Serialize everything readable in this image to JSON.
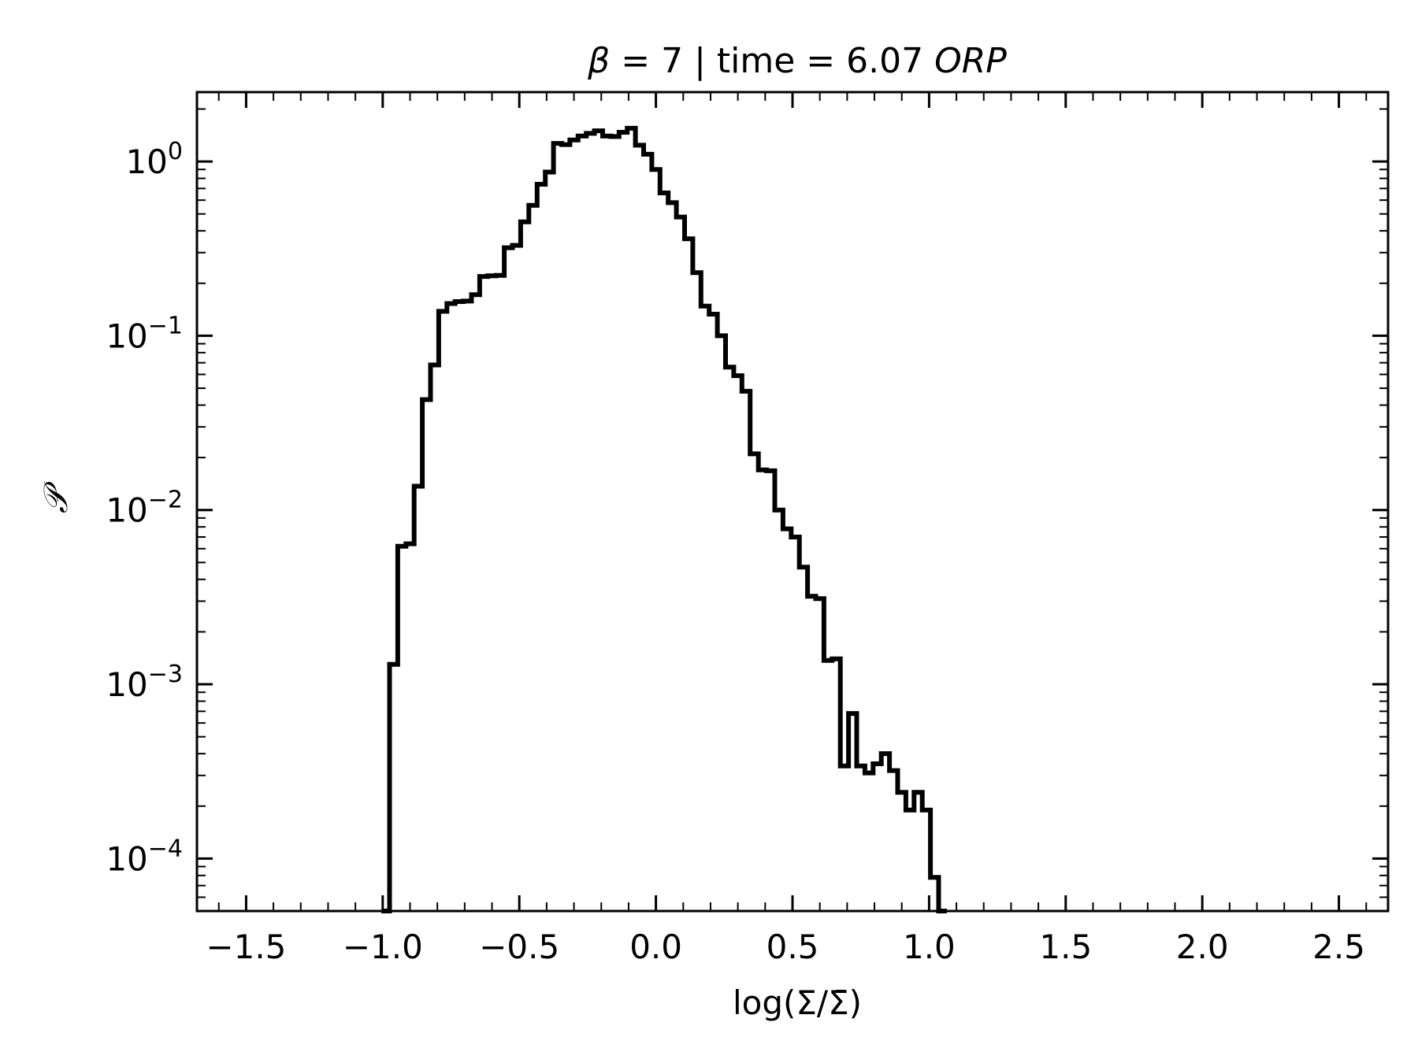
{
  "chart_data": {
    "type": "step",
    "title": {
      "beta_symbol": "β",
      "beta_rest": " = 7 | time = 6.07 ",
      "unit": "ORP"
    },
    "xlabel": "log(Σ/Σ̄)",
    "ylabel": "𝒫",
    "yscale": "log",
    "xlim": [
      -1.68,
      2.68
    ],
    "ylim": [
      5e-05,
      2.5
    ],
    "grid": false,
    "legend": "none",
    "line_color": "#000000",
    "x_ticks": [
      {
        "value": -1.5,
        "label": "−1.5"
      },
      {
        "value": -1.0,
        "label": "−1.0"
      },
      {
        "value": -0.5,
        "label": "−0.5"
      },
      {
        "value": 0.0,
        "label": "0.0"
      },
      {
        "value": 0.5,
        "label": "0.5"
      },
      {
        "value": 1.0,
        "label": "1.0"
      },
      {
        "value": 1.5,
        "label": "1.5"
      },
      {
        "value": 2.0,
        "label": "2.0"
      },
      {
        "value": 2.5,
        "label": "2.5"
      }
    ],
    "y_ticks": [
      {
        "value": 1,
        "base": "10",
        "exp": "0"
      },
      {
        "value": 0.1,
        "base": "10",
        "exp": "−1"
      },
      {
        "value": 0.01,
        "base": "10",
        "exp": "−2"
      },
      {
        "value": 0.001,
        "base": "10",
        "exp": "−3"
      },
      {
        "value": 0.0001,
        "base": "10",
        "exp": "−4"
      }
    ],
    "bins": [
      [
        -1.005,
        -0.975,
        1e-07
      ],
      [
        -0.975,
        -0.945,
        0.0013
      ],
      [
        -0.945,
        -0.915,
        0.0062
      ],
      [
        -0.915,
        -0.885,
        0.0064
      ],
      [
        -0.885,
        -0.855,
        0.0137
      ],
      [
        -0.855,
        -0.825,
        0.043
      ],
      [
        -0.825,
        -0.795,
        0.068
      ],
      [
        -0.795,
        -0.765,
        0.138
      ],
      [
        -0.765,
        -0.735,
        0.153
      ],
      [
        -0.735,
        -0.705,
        0.157
      ],
      [
        -0.705,
        -0.675,
        0.158
      ],
      [
        -0.675,
        -0.645,
        0.172
      ],
      [
        -0.645,
        -0.615,
        0.219
      ],
      [
        -0.615,
        -0.585,
        0.221
      ],
      [
        -0.585,
        -0.555,
        0.222
      ],
      [
        -0.555,
        -0.525,
        0.32
      ],
      [
        -0.525,
        -0.495,
        0.33
      ],
      [
        -0.495,
        -0.465,
        0.45
      ],
      [
        -0.465,
        -0.435,
        0.56
      ],
      [
        -0.435,
        -0.405,
        0.74
      ],
      [
        -0.405,
        -0.375,
        0.87
      ],
      [
        -0.375,
        -0.345,
        1.27
      ],
      [
        -0.345,
        -0.315,
        1.25
      ],
      [
        -0.315,
        -0.285,
        1.33
      ],
      [
        -0.285,
        -0.255,
        1.4
      ],
      [
        -0.255,
        -0.225,
        1.45
      ],
      [
        -0.225,
        -0.195,
        1.5
      ],
      [
        -0.195,
        -0.165,
        1.4
      ],
      [
        -0.165,
        -0.135,
        1.39
      ],
      [
        -0.135,
        -0.105,
        1.47
      ],
      [
        -0.105,
        -0.075,
        1.55
      ],
      [
        -0.075,
        -0.045,
        1.24
      ],
      [
        -0.045,
        -0.015,
        1.1
      ],
      [
        -0.015,
        0.015,
        0.9
      ],
      [
        0.015,
        0.045,
        0.66
      ],
      [
        0.045,
        0.075,
        0.58
      ],
      [
        0.075,
        0.105,
        0.48
      ],
      [
        0.105,
        0.135,
        0.36
      ],
      [
        0.135,
        0.165,
        0.23
      ],
      [
        0.165,
        0.195,
        0.148
      ],
      [
        0.195,
        0.225,
        0.133
      ],
      [
        0.225,
        0.255,
        0.1
      ],
      [
        0.255,
        0.285,
        0.066
      ],
      [
        0.285,
        0.315,
        0.059
      ],
      [
        0.315,
        0.345,
        0.048
      ],
      [
        0.345,
        0.375,
        0.021
      ],
      [
        0.375,
        0.405,
        0.017
      ],
      [
        0.405,
        0.435,
        0.0168
      ],
      [
        0.435,
        0.465,
        0.01
      ],
      [
        0.465,
        0.495,
        0.0078
      ],
      [
        0.495,
        0.525,
        0.007
      ],
      [
        0.525,
        0.555,
        0.0047
      ],
      [
        0.555,
        0.585,
        0.0032
      ],
      [
        0.585,
        0.615,
        0.0031
      ],
      [
        0.615,
        0.645,
        0.00137
      ],
      [
        0.645,
        0.675,
        0.0014
      ],
      [
        0.675,
        0.705,
        0.00034
      ],
      [
        0.705,
        0.735,
        0.00068
      ],
      [
        0.735,
        0.765,
        0.00034
      ],
      [
        0.765,
        0.795,
        0.00031
      ],
      [
        0.795,
        0.825,
        0.00035
      ],
      [
        0.825,
        0.855,
        0.0004
      ],
      [
        0.855,
        0.885,
        0.00032
      ],
      [
        0.885,
        0.915,
        0.00024
      ],
      [
        0.915,
        0.945,
        0.00019
      ],
      [
        0.945,
        0.975,
        0.00024
      ],
      [
        0.975,
        1.005,
        0.00019
      ],
      [
        1.005,
        1.035,
        7.8e-05
      ],
      [
        1.035,
        1.065,
        1e-07
      ]
    ]
  }
}
